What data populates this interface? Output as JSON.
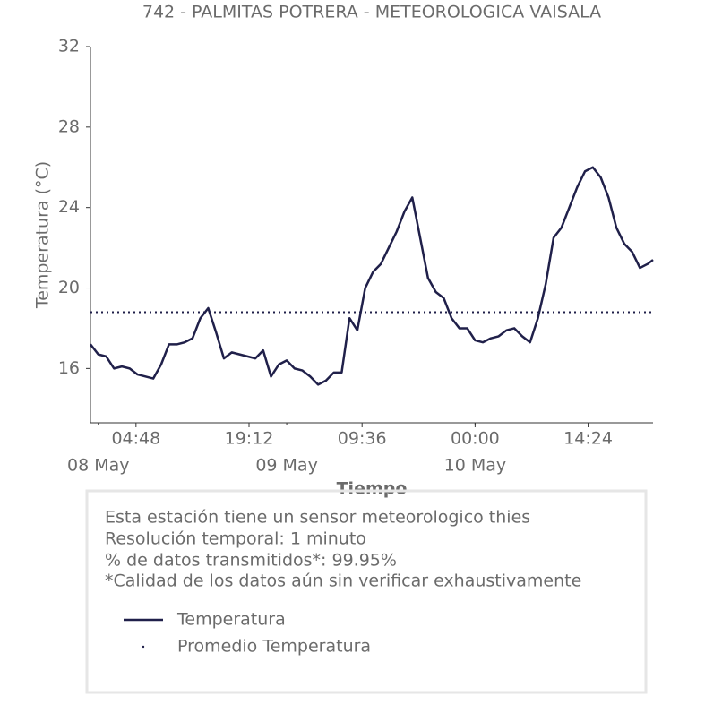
{
  "chart_data": {
    "type": "line",
    "title": "742 - PALMITAS POTRERA - METEOROLOGICA VAISALA",
    "x_label": "Tiempo",
    "y_label": "Temperatura (°C)",
    "x": [
      "07 May 23:00",
      "08 May 00:00",
      "08 May 01:00",
      "08 May 02:00",
      "08 May 03:00",
      "08 May 04:00",
      "08 May 05:00",
      "08 May 06:00",
      "08 May 07:00",
      "08 May 08:00",
      "08 May 09:00",
      "08 May 10:00",
      "08 May 11:00",
      "08 May 12:00",
      "08 May 13:00",
      "08 May 14:00",
      "08 May 15:00",
      "08 May 16:00",
      "08 May 17:00",
      "08 May 18:00",
      "08 May 19:00",
      "08 May 20:00",
      "08 May 21:00",
      "08 May 22:00",
      "08 May 23:00",
      "09 May 00:00",
      "09 May 01:00",
      "09 May 02:00",
      "09 May 03:00",
      "09 May 04:00",
      "09 May 05:00",
      "09 May 06:00",
      "09 May 07:00",
      "09 May 08:00",
      "09 May 09:00",
      "09 May 10:00",
      "09 May 11:00",
      "09 May 12:00",
      "09 May 13:00",
      "09 May 14:00",
      "09 May 15:00",
      "09 May 16:00",
      "09 May 17:00",
      "09 May 18:00",
      "09 May 19:00",
      "09 May 20:00",
      "09 May 21:00",
      "09 May 22:00",
      "09 May 23:00",
      "10 May 00:00",
      "10 May 01:00",
      "10 May 02:00",
      "10 May 03:00",
      "10 May 04:00",
      "10 May 05:00",
      "10 May 06:00",
      "10 May 07:00",
      "10 May 08:00",
      "10 May 09:00",
      "10 May 10:00",
      "10 May 11:00",
      "10 May 12:00",
      "10 May 13:00",
      "10 May 14:00",
      "10 May 15:00",
      "10 May 16:00",
      "10 May 17:00",
      "10 May 18:00",
      "10 May 19:00",
      "10 May 20:00",
      "10 May 21:00",
      "10 May 22:00",
      "10 May 22:40"
    ],
    "series": [
      {
        "name": "Temperatura",
        "color": "#20204a",
        "values": [
          17.2,
          16.7,
          16.6,
          16.0,
          16.1,
          16.0,
          15.7,
          15.6,
          15.5,
          16.2,
          17.2,
          17.2,
          17.3,
          17.5,
          18.5,
          19.0,
          17.8,
          16.5,
          16.8,
          16.7,
          16.6,
          16.5,
          16.9,
          15.6,
          16.2,
          16.4,
          16.0,
          15.9,
          15.6,
          15.2,
          15.4,
          15.8,
          15.8,
          18.5,
          17.9,
          20.0,
          20.8,
          21.2,
          22.0,
          22.8,
          23.8,
          24.5,
          22.5,
          20.5,
          19.8,
          19.5,
          18.5,
          18.0,
          18.0,
          17.4,
          17.3,
          17.5,
          17.6,
          17.9,
          18.0,
          17.6,
          17.3,
          18.5,
          20.2,
          22.5,
          23.0,
          24.0,
          25.0,
          25.8,
          26.0,
          25.5,
          24.5,
          23.0,
          22.2,
          21.8,
          21.0,
          21.2,
          21.4
        ]
      }
    ],
    "reference_lines": [
      {
        "name": "Promedio Temperatura",
        "value": 18.8,
        "color": "#20204a"
      }
    ],
    "xlim": [
      "07 May 23:00",
      "10 May 22:40"
    ],
    "xticks": [
      {
        "value": "08 May 04:48",
        "label": "04:48"
      },
      {
        "value": "08 May 19:12",
        "label": "19:12"
      },
      {
        "value": "09 May 09:36",
        "label": "09:36"
      },
      {
        "value": "10 May 00:00",
        "label": "00:00"
      },
      {
        "value": "10 May 14:24",
        "label": "14:24"
      }
    ],
    "xticks_minor": [
      {
        "value": "08 May 00:00",
        "label": "08 May"
      },
      {
        "value": "09 May 00:00",
        "label": "09 May"
      },
      {
        "value": "10 May 00:00",
        "label": "10 May"
      }
    ],
    "ylim": [
      13.3,
      32
    ],
    "yticks": [
      16,
      20,
      24,
      28,
      32
    ],
    "grid": false
  },
  "info": [
    "Esta estación tiene un sensor meteorologico thies",
    "Resolución temporal: 1 minuto",
    "% de datos transmitidos*: 99.95%",
    "*Calidad de los datos aún sin verificar exhaustivamente"
  ]
}
